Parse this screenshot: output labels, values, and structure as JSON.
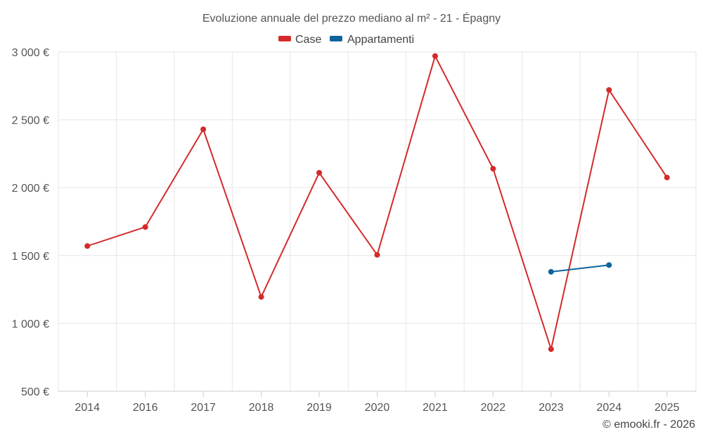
{
  "chart_data": {
    "type": "line",
    "title": "Evoluzione annuale del prezzo mediano al m² - 21 - Épagny",
    "categories": [
      "2014",
      "2016",
      "2017",
      "2018",
      "2019",
      "2020",
      "2021",
      "2022",
      "2023",
      "2024",
      "2025"
    ],
    "y_tick_labels": [
      "500 €",
      "1 000 €",
      "1 500 €",
      "2 000 €",
      "2 500 €",
      "3 000 €"
    ],
    "y_ticks": [
      500,
      1000,
      1500,
      2000,
      2500,
      3000
    ],
    "ylim": [
      500,
      3000
    ],
    "grid": true,
    "legend_position": "top",
    "series": [
      {
        "name": "Case",
        "color": "#d42a2a",
        "values": [
          1570,
          1710,
          2430,
          1195,
          2110,
          1505,
          2970,
          2140,
          810,
          2720,
          2075
        ]
      },
      {
        "name": "Appartamenti",
        "color": "#0e639c",
        "values": [
          null,
          null,
          null,
          null,
          null,
          null,
          null,
          null,
          1380,
          1430,
          null
        ]
      }
    ],
    "credit": "© emooki.fr - 2026"
  }
}
